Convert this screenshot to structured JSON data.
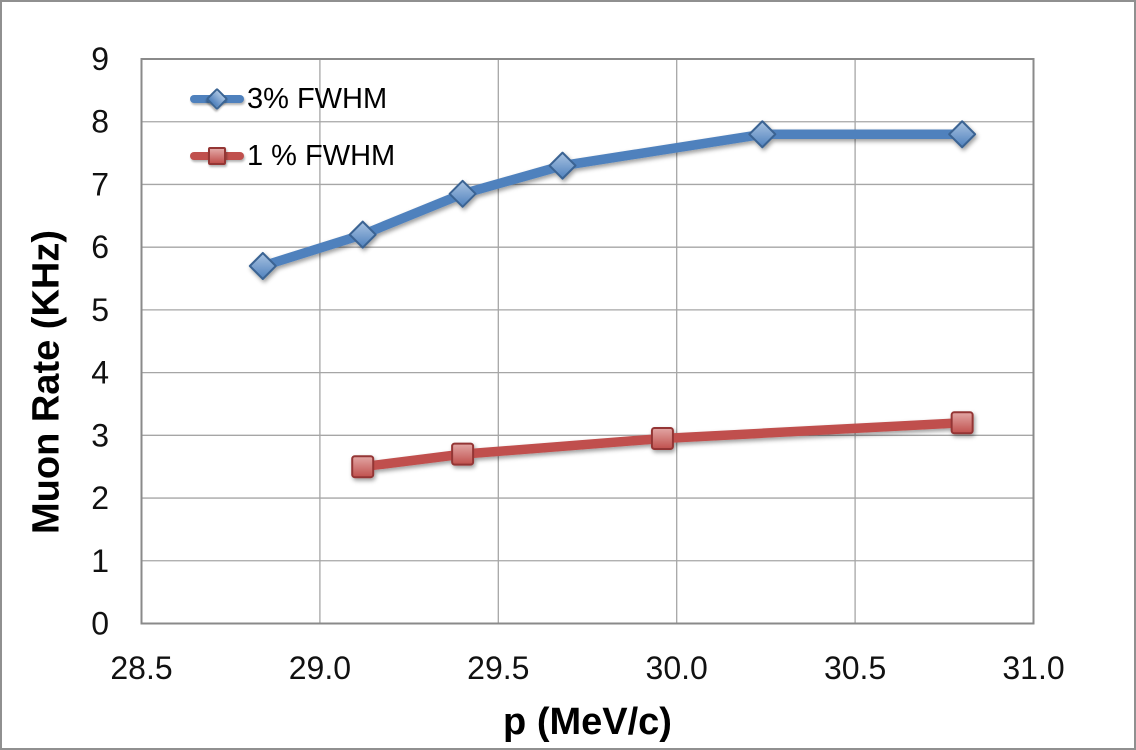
{
  "chart_data": {
    "type": "line",
    "title": "",
    "xlabel": "p (MeV/c)",
    "ylabel": "Muon Rate (KHz)",
    "xlim": [
      28.5,
      31.0
    ],
    "ylim": [
      0,
      9
    ],
    "x_tick_labels": [
      "28.5",
      "29.0",
      "29.5",
      "30.0",
      "30.5",
      "31.0"
    ],
    "x_tick_values": [
      28.5,
      29.0,
      29.5,
      30.0,
      30.5,
      31.0
    ],
    "y_tick_labels": [
      "0",
      "1",
      "2",
      "3",
      "4",
      "5",
      "6",
      "7",
      "8",
      "9"
    ],
    "y_tick_values": [
      0,
      1,
      2,
      3,
      4,
      5,
      6,
      7,
      8,
      9
    ],
    "grid": true,
    "legend_position": "inside-top-left",
    "series": [
      {
        "name": "3% FWHM",
        "marker": "diamond",
        "color": "#4F81BD",
        "marker_fill_top": "#A9C3E1",
        "marker_border": "#3A6493",
        "x": [
          28.84,
          29.12,
          29.4,
          29.68,
          30.24,
          30.8
        ],
        "y": [
          5.7,
          6.2,
          6.85,
          7.3,
          7.8,
          7.8
        ]
      },
      {
        "name": "1 % FWHM",
        "marker": "square",
        "color": "#C0504D",
        "marker_fill_top": "#E2A7A5",
        "marker_border": "#943634",
        "x": [
          29.12,
          29.4,
          29.96,
          30.8
        ],
        "y": [
          2.5,
          2.7,
          2.95,
          3.2
        ]
      }
    ]
  },
  "colors": {
    "background": "#FFFFFF",
    "figure_border": "#909090",
    "grid_line": "#A6A6A6",
    "plot_border": "#8A8A8A",
    "tick_text": "#111111"
  }
}
